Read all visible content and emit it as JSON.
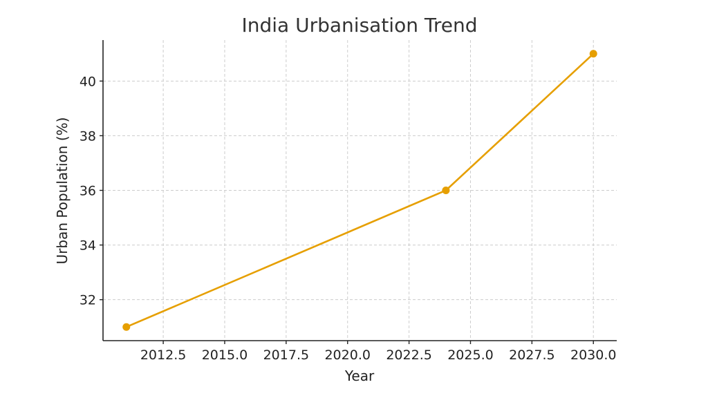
{
  "chart_data": {
    "type": "line",
    "title": "India Urbanisation Trend",
    "xlabel": "Year",
    "ylabel": "Urban Population (%)",
    "xlim": [
      2010.05,
      2030.95
    ],
    "ylim": [
      30.5,
      41.5
    ],
    "x_ticks": [
      2012.5,
      2015.0,
      2017.5,
      2020.0,
      2022.5,
      2025.0,
      2027.5,
      2030.0
    ],
    "x_tick_labels": [
      "2012.5",
      "2015.0",
      "2017.5",
      "2020.0",
      "2022.5",
      "2025.0",
      "2027.5",
      "2030.0"
    ],
    "y_ticks": [
      32,
      34,
      36,
      38,
      40
    ],
    "y_tick_labels": [
      "32",
      "34",
      "36",
      "38",
      "40"
    ],
    "grid": true,
    "series": [
      {
        "color": "#E69F00",
        "x": [
          2011,
          2024,
          2030
        ],
        "y": [
          31,
          36,
          41
        ]
      }
    ]
  }
}
